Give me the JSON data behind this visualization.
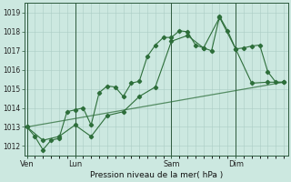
{
  "bg_color": "#cce8e0",
  "grid_color": "#aaccc4",
  "line_color": "#2d6e3a",
  "title": "Pression niveau de la mer( hPa )",
  "ylim": [
    1011.5,
    1019.5
  ],
  "yticks": [
    1012,
    1013,
    1014,
    1015,
    1016,
    1017,
    1018,
    1019
  ],
  "xtick_labels": [
    "Ven",
    "Lun",
    "Sam",
    "Dim"
  ],
  "xtick_positions": [
    0,
    6,
    18,
    26
  ],
  "vline_positions": [
    0,
    6,
    18,
    26
  ],
  "xlim": [
    -0.3,
    32.5
  ],
  "line1_x": [
    0,
    1,
    2,
    3,
    4,
    5,
    6,
    7,
    8,
    9,
    10,
    11,
    12,
    13,
    14,
    15,
    16,
    17,
    18,
    19,
    20,
    21,
    22,
    23,
    24,
    25,
    26,
    27,
    28,
    29,
    30,
    31,
    32
  ],
  "line1_y": [
    1013.0,
    1012.5,
    1011.8,
    1012.3,
    1012.4,
    1013.8,
    1013.9,
    1014.0,
    1013.1,
    1014.8,
    1015.15,
    1015.1,
    1014.6,
    1015.3,
    1015.4,
    1016.7,
    1017.3,
    1017.7,
    1017.7,
    1018.05,
    1018.0,
    1017.3,
    1017.15,
    1017.0,
    1018.8,
    1018.05,
    1017.1,
    1017.15,
    1017.25,
    1017.3,
    1015.9,
    1015.35,
    1015.35
  ],
  "line2_x": [
    0,
    2,
    4,
    6,
    8,
    10,
    12,
    14,
    16,
    18,
    20,
    22,
    24,
    26,
    28,
    30,
    32
  ],
  "line2_y": [
    1013.0,
    1012.3,
    1012.5,
    1013.1,
    1012.5,
    1013.6,
    1013.8,
    1014.6,
    1015.1,
    1017.5,
    1017.8,
    1017.15,
    1018.75,
    1017.1,
    1015.3,
    1015.35,
    1015.35
  ],
  "line3_x": [
    0,
    32
  ],
  "line3_y": [
    1013.0,
    1015.35
  ]
}
